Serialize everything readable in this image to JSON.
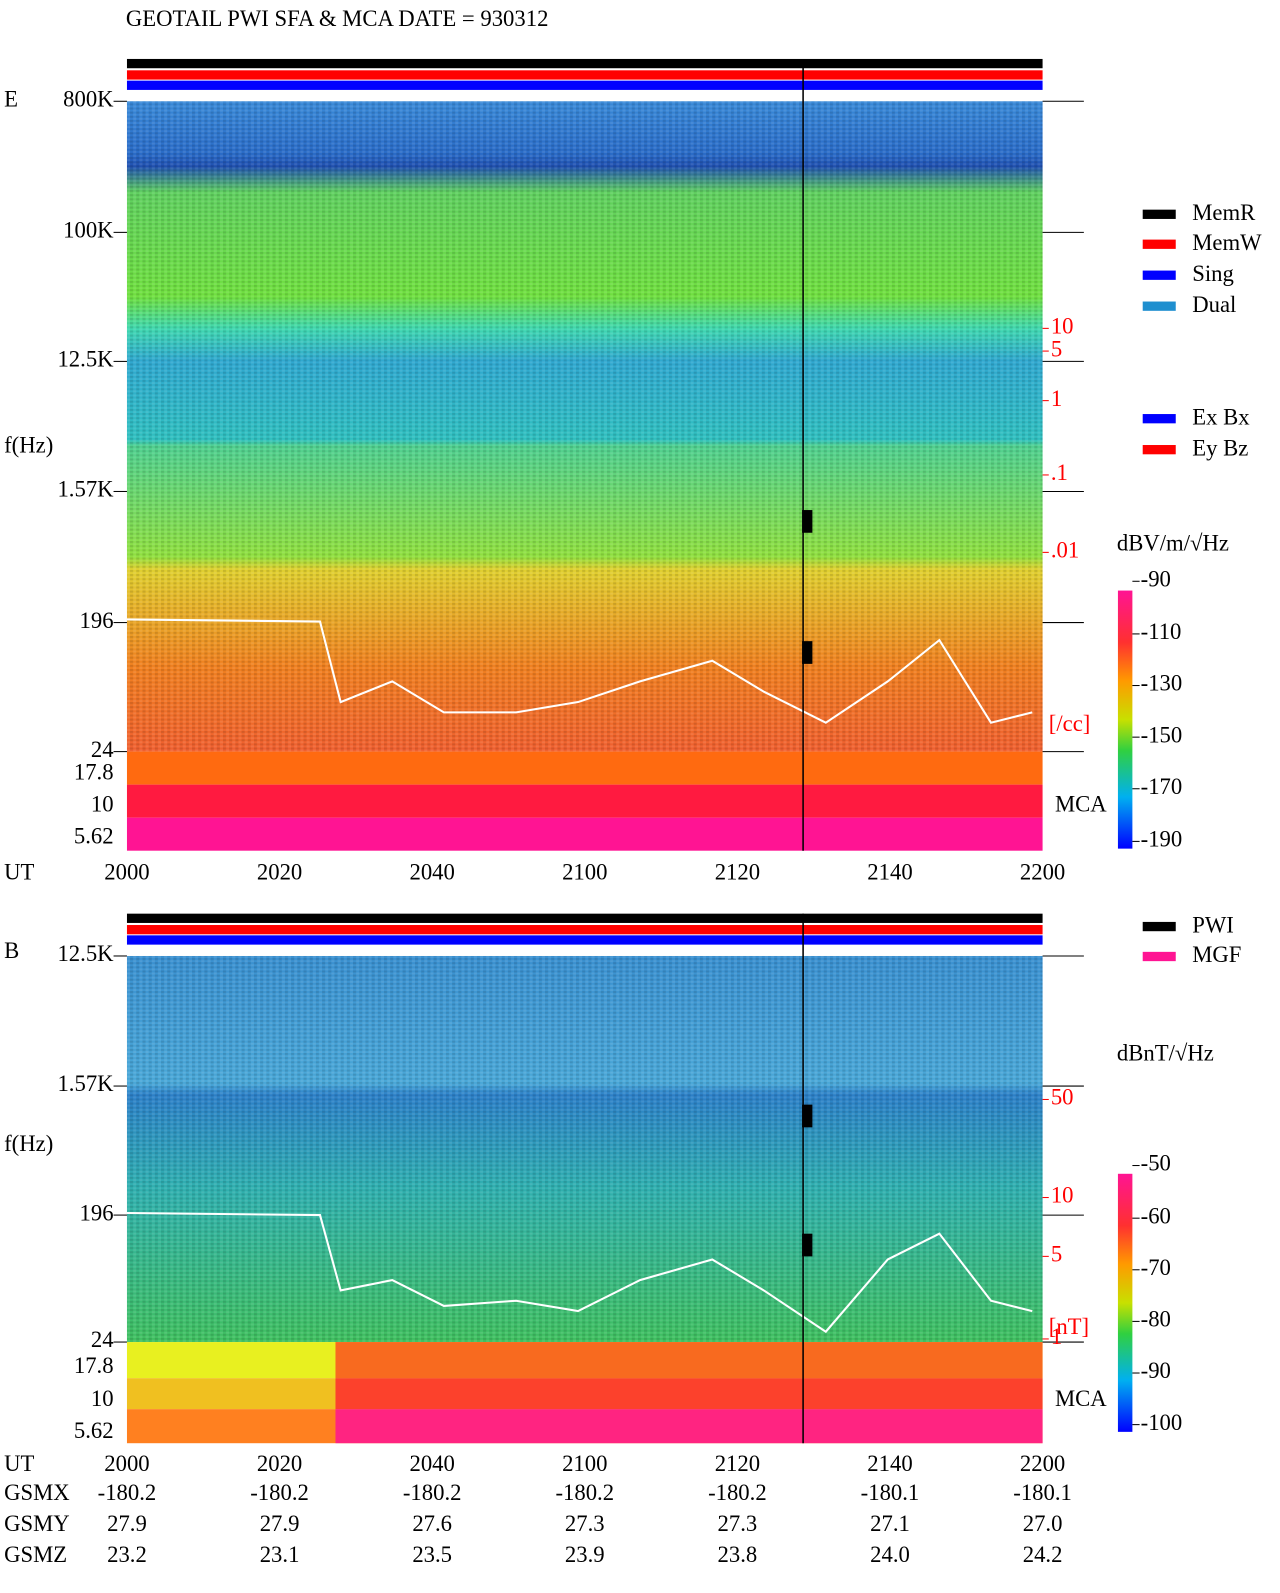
{
  "title": "GEOTAIL   PWI SFA & MCA   DATE = 930312",
  "legend_status": [
    {
      "label": "MemR",
      "color": "#000000"
    },
    {
      "label": "MemW",
      "color": "#ff0000"
    },
    {
      "label": "Sing",
      "color": "#0000ff"
    },
    {
      "label": "Dual",
      "color": "#1f8fcf"
    }
  ],
  "legend_axes": [
    {
      "label": "Ex Bx",
      "color": "#0000ff"
    },
    {
      "label": "Ey Bz",
      "color": "#ff0000"
    }
  ],
  "legend_source": [
    {
      "label": "PWI",
      "color": "#000000"
    },
    {
      "label": "MGF",
      "color": "#ff1493"
    }
  ],
  "panels": [
    {
      "label": "E",
      "y_label": "f(Hz)",
      "x_label": "UT",
      "mca": "MCA",
      "freq_ticks": [
        "800K",
        "100K",
        "12.5K",
        "1.57K",
        "196",
        "24",
        "17.8",
        "10",
        "5.62"
      ],
      "x_ticks": [
        2000,
        2020,
        2040,
        2100,
        2120,
        2140,
        2200
      ],
      "right_ticks": [
        "10",
        "5",
        "1",
        ".1",
        ".01"
      ],
      "right_unit": "[/cc]",
      "colorbar_unit": "dBV/m/√Hz",
      "colorbar_ticks": [
        -90,
        -110,
        -130,
        -150,
        -170,
        -190
      ]
    },
    {
      "label": "B",
      "y_label": "f(Hz)",
      "x_label": "UT",
      "mca": "MCA",
      "freq_ticks": [
        "12.5K",
        "1.57K",
        "196",
        "24",
        "17.8",
        "10",
        "5.62"
      ],
      "x_ticks": [
        2000,
        2020,
        2040,
        2100,
        2120,
        2140,
        2200
      ],
      "right_ticks": [
        "50",
        "10",
        "5",
        "1"
      ],
      "right_unit": "[nT]",
      "colorbar_unit": "dBnT/√Hz",
      "colorbar_ticks": [
        -50,
        -60,
        -70,
        -80,
        -90,
        -100
      ]
    }
  ],
  "orbit": [
    {
      "label": "GSMX",
      "values": [
        "-180.2",
        "-180.2",
        "-180.2",
        "-180.2",
        "-180.2",
        "-180.1",
        "-180.1"
      ]
    },
    {
      "label": "GSMY",
      "values": [
        "27.9",
        "27.9",
        "27.6",
        "27.3",
        "27.3",
        "27.1",
        "27.0"
      ]
    },
    {
      "label": "GSMZ",
      "values": [
        "23.2",
        "23.1",
        "23.5",
        "23.9",
        "23.8",
        "24.0",
        "24.2"
      ]
    }
  ]
}
